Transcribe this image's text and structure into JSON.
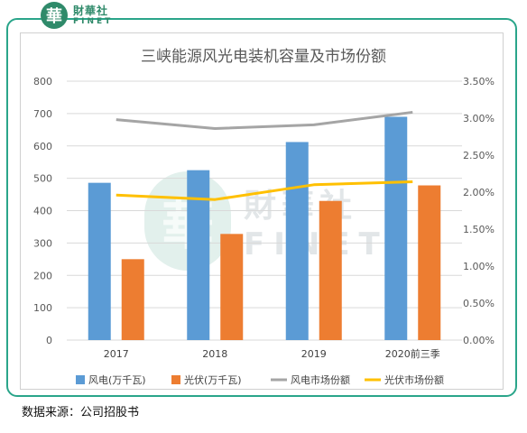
{
  "brand": {
    "mark": "華",
    "name_cn": "財華社",
    "name_en": "FINET"
  },
  "footer": {
    "source": "数据来源：公司招股书"
  },
  "colors": {
    "frame": "#2aa58a",
    "wind_bar": "#5b9bd5",
    "solar_bar": "#ed7d31",
    "wind_share_line": "#a5a5a5",
    "solar_share_line": "#ffc000"
  },
  "chart_data": {
    "type": "bar",
    "title": "三峡能源风光电装机容量及市场份额",
    "categories": [
      "2017",
      "2018",
      "2019",
      "2020前三季"
    ],
    "series": [
      {
        "name": "风电(万千瓦)",
        "type": "bar",
        "axis": "left",
        "values": [
          486,
          525,
          612,
          690
        ]
      },
      {
        "name": "光伏(万千瓦)",
        "type": "bar",
        "axis": "left",
        "values": [
          250,
          328,
          430,
          478
        ]
      },
      {
        "name": "风电市场份额",
        "type": "line",
        "axis": "right",
        "values": [
          0.0298,
          0.0286,
          0.0291,
          0.0308
        ]
      },
      {
        "name": "光伏市场份额",
        "type": "line",
        "axis": "right",
        "values": [
          0.0196,
          0.019,
          0.021,
          0.0214
        ]
      }
    ],
    "y_left": {
      "min": 0,
      "max": 800,
      "step": 100,
      "ticks": [
        "0",
        "100",
        "200",
        "300",
        "400",
        "500",
        "600",
        "700",
        "800"
      ]
    },
    "y_right": {
      "min": 0,
      "max": 0.035,
      "step": 0.005,
      "ticks": [
        "0.00%",
        "0.50%",
        "1.00%",
        "1.50%",
        "2.00%",
        "2.50%",
        "3.00%",
        "3.50%"
      ]
    },
    "grid": true,
    "legend_position": "bottom"
  }
}
